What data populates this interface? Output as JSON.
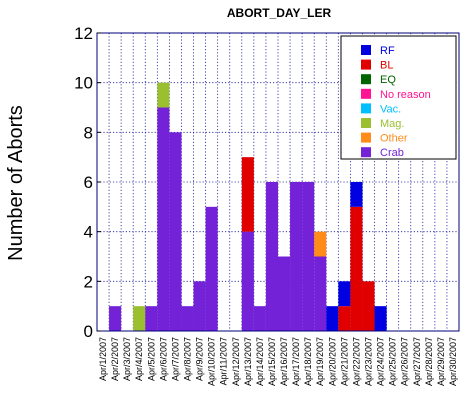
{
  "chart_data": {
    "type": "bar",
    "stacked": true,
    "title": "ABORT_DAY_LER",
    "xlabel": "",
    "ylabel": "Number of Aborts",
    "ylim": [
      0,
      12
    ],
    "yticks": [
      0,
      2,
      4,
      6,
      8,
      10,
      12
    ],
    "grid": true,
    "legend_position": "top-right",
    "categories": [
      "Apr/1/2007",
      "Apr/2/2007",
      "Apr/3/2007",
      "Apr/4/2007",
      "Apr/5/2007",
      "Apr/6/2007",
      "Apr/7/2007",
      "Apr/8/2007",
      "Apr/9/2007",
      "Apr/10/2007",
      "Apr/11/2007",
      "Apr/12/2007",
      "Apr/13/2007",
      "Apr/14/2007",
      "Apr/15/2007",
      "Apr/16/2007",
      "Apr/17/2007",
      "Apr/18/2007",
      "Apr/19/2007",
      "Apr/20/2007",
      "Apr/21/2007",
      "Apr/22/2007",
      "Apr/23/2007",
      "Apr/24/2007",
      "Apr/25/2007",
      "Apr/26/2007",
      "Apr/27/2007",
      "Apr/28/2007",
      "Apr/29/2007",
      "Apr/30/2007"
    ],
    "stack_order": [
      "Crab",
      "Mag.",
      "EQ",
      "No reason",
      "Vac.",
      "Other",
      "BL",
      "RF"
    ],
    "series": [
      {
        "name": "RF",
        "color": "#0000e0",
        "values": [
          0,
          0,
          0,
          0,
          0,
          0,
          0,
          0,
          0,
          0,
          0,
          0,
          0,
          0,
          0,
          0,
          0,
          0,
          0,
          1,
          1,
          1,
          0,
          1,
          0,
          0,
          0,
          0,
          0,
          0
        ]
      },
      {
        "name": "BL",
        "color": "#e00000",
        "values": [
          0,
          0,
          0,
          0,
          0,
          0,
          0,
          0,
          0,
          0,
          0,
          0,
          3,
          0,
          0,
          0,
          0,
          0,
          0,
          0,
          1,
          5,
          2,
          0,
          0,
          0,
          0,
          0,
          0,
          0
        ]
      },
      {
        "name": "EQ",
        "color": "#006400",
        "values": [
          0,
          0,
          0,
          0,
          0,
          0,
          0,
          0,
          0,
          0,
          0,
          0,
          0,
          0,
          0,
          0,
          0,
          0,
          0,
          0,
          0,
          0,
          0,
          0,
          0,
          0,
          0,
          0,
          0,
          0
        ]
      },
      {
        "name": "No reason",
        "color": "#ff1493",
        "values": [
          0,
          0,
          0,
          0,
          0,
          0,
          0,
          0,
          0,
          0,
          0,
          0,
          0,
          0,
          0,
          0,
          0,
          0,
          0,
          0,
          0,
          0,
          0,
          0,
          0,
          0,
          0,
          0,
          0,
          0
        ]
      },
      {
        "name": "Vac.",
        "color": "#00bfff",
        "values": [
          0,
          0,
          0,
          0,
          0,
          0,
          0,
          0,
          0,
          0,
          0,
          0,
          0,
          0,
          0,
          0,
          0,
          0,
          0,
          0,
          0,
          0,
          0,
          0,
          0,
          0,
          0,
          0,
          0,
          0
        ]
      },
      {
        "name": "Mag.",
        "color": "#9ac030",
        "values": [
          0,
          0,
          0,
          1,
          0,
          1,
          0,
          0,
          0,
          0,
          0,
          0,
          0,
          0,
          0,
          0,
          0,
          0,
          0,
          0,
          0,
          0,
          0,
          0,
          0,
          0,
          0,
          0,
          0,
          0
        ]
      },
      {
        "name": "Other",
        "color": "#ff8c1a",
        "values": [
          0,
          0,
          0,
          0,
          0,
          0,
          0,
          0,
          0,
          0,
          0,
          0,
          0,
          0,
          0,
          0,
          0,
          0,
          1,
          0,
          0,
          0,
          0,
          0,
          0,
          0,
          0,
          0,
          0,
          0
        ]
      },
      {
        "name": "Crab",
        "color": "#7422d8",
        "values": [
          0,
          1,
          0,
          0,
          1,
          9,
          8,
          1,
          2,
          5,
          0,
          0,
          4,
          1,
          6,
          3,
          6,
          6,
          3,
          0,
          0,
          0,
          0,
          0,
          0,
          0,
          0,
          0,
          0,
          0
        ]
      }
    ]
  }
}
